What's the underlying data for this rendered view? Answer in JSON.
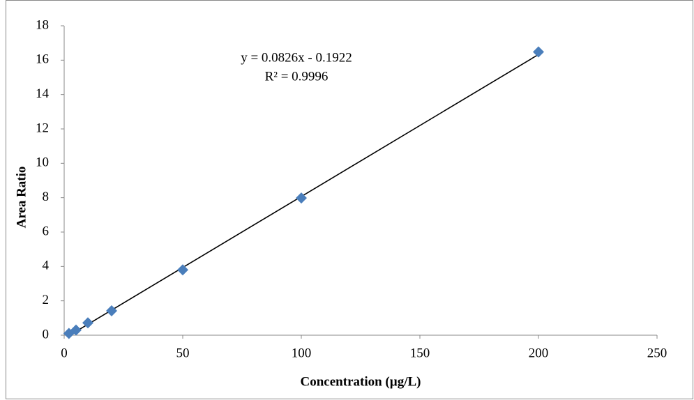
{
  "chart_data": {
    "type": "scatter",
    "x_label": "Concentration (µg/L)",
    "y_label": "Area Ratio",
    "x": [
      2,
      5,
      10,
      20,
      50,
      100,
      200
    ],
    "series": [
      {
        "name": "Area Ratio",
        "color": "#4a7ebb",
        "values": [
          0.1,
          0.3,
          0.72,
          1.42,
          3.8,
          7.98,
          16.48
        ]
      }
    ],
    "xlim": [
      0,
      250
    ],
    "xticks": [
      0,
      50,
      100,
      150,
      200,
      250
    ],
    "ylim": [
      0,
      18
    ],
    "yticks": [
      0,
      2,
      4,
      6,
      8,
      10,
      12,
      14,
      16,
      18
    ],
    "grid": false,
    "trendline": {
      "slope": 0.0826,
      "intercept": -0.1922,
      "color": "#000000",
      "equation": "y = 0.0826x - 0.1922",
      "r2_label": "R² = 0.9996"
    }
  }
}
